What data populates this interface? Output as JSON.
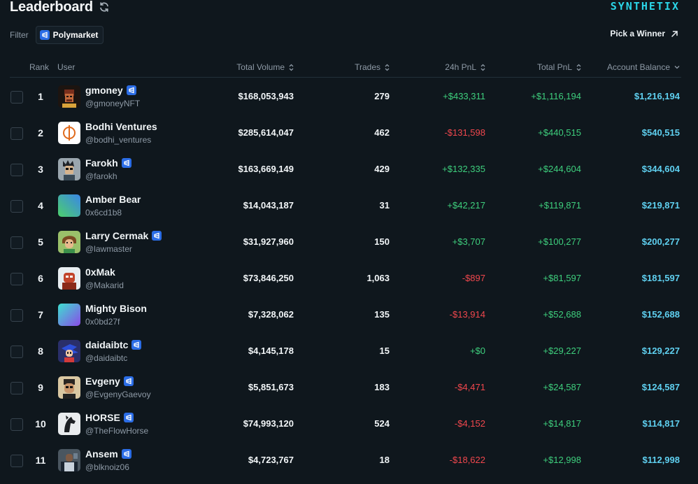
{
  "header": {
    "title": "Leaderboard",
    "brand": "SYNTHETIX"
  },
  "filter": {
    "label": "Filter",
    "chip": "Polymarket"
  },
  "pick_winner": "Pick a Winner",
  "columns": {
    "rank": "Rank",
    "user": "User",
    "total_volume": "Total Volume",
    "trades": "Trades",
    "pnl_24h": "24h PnL",
    "total_pnl": "Total PnL",
    "account_balance": "Account Balance"
  },
  "colors": {
    "positive": "#3ecf7d",
    "negative": "#f0474d",
    "balance": "#5fd0f0",
    "brand": "#2bd6e8",
    "verified": "#2b6de6"
  },
  "rows": [
    {
      "rank": "1",
      "name": "gmoney",
      "handle": "@gmoneyNFT",
      "verified": true,
      "avatar": "avatar-gmoney",
      "volume": "$168,053,943",
      "trades": "279",
      "pnl24": "+$433,311",
      "pnl24_sign": "pos",
      "pnl_total": "+$1,116,194",
      "balance": "$1,216,194"
    },
    {
      "rank": "2",
      "name": "Bodhi Ventures",
      "handle": "@bodhi_ventures",
      "verified": false,
      "avatar": "avatar-bodhi",
      "volume": "$285,614,047",
      "trades": "462",
      "pnl24": "-$131,598",
      "pnl24_sign": "neg",
      "pnl_total": "+$440,515",
      "balance": "$540,515"
    },
    {
      "rank": "3",
      "name": "Farokh",
      "handle": "@farokh",
      "verified": true,
      "avatar": "avatar-farokh",
      "volume": "$163,669,149",
      "trades": "429",
      "pnl24": "+$132,335",
      "pnl24_sign": "pos",
      "pnl_total": "+$244,604",
      "balance": "$344,604"
    },
    {
      "rank": "4",
      "name": "Amber Bear",
      "handle": "0x6cd1b8",
      "verified": false,
      "avatar": "avatar-gradient-green",
      "volume": "$14,043,187",
      "trades": "31",
      "pnl24": "+$42,217",
      "pnl24_sign": "pos",
      "pnl_total": "+$119,871",
      "balance": "$219,871"
    },
    {
      "rank": "5",
      "name": "Larry Cermak",
      "handle": "@lawmaster",
      "verified": true,
      "avatar": "avatar-larry",
      "volume": "$31,927,960",
      "trades": "150",
      "pnl24": "+$3,707",
      "pnl24_sign": "pos",
      "pnl_total": "+$100,277",
      "balance": "$200,277"
    },
    {
      "rank": "6",
      "name": "0xMak",
      "handle": "@Makarid",
      "verified": false,
      "avatar": "avatar-0xmak",
      "volume": "$73,846,250",
      "trades": "1,063",
      "pnl24": "-$897",
      "pnl24_sign": "neg",
      "pnl_total": "+$81,597",
      "balance": "$181,597"
    },
    {
      "rank": "7",
      "name": "Mighty Bison",
      "handle": "0x0bd27f",
      "verified": false,
      "avatar": "avatar-gradient-cyan",
      "volume": "$7,328,062",
      "trades": "135",
      "pnl24": "-$13,914",
      "pnl24_sign": "neg",
      "pnl_total": "+$52,688",
      "balance": "$152,688"
    },
    {
      "rank": "8",
      "name": "daidaibtc",
      "handle": "@daidaibtc",
      "verified": true,
      "avatar": "avatar-daidai",
      "volume": "$4,145,178",
      "trades": "15",
      "pnl24": "+$0",
      "pnl24_sign": "pos",
      "pnl_total": "+$29,227",
      "balance": "$129,227"
    },
    {
      "rank": "9",
      "name": "Evgeny",
      "handle": "@EvgenyGaevoy",
      "verified": true,
      "avatar": "avatar-evgeny",
      "volume": "$5,851,673",
      "trades": "183",
      "pnl24": "-$4,471",
      "pnl24_sign": "neg",
      "pnl_total": "+$24,587",
      "balance": "$124,587"
    },
    {
      "rank": "10",
      "name": "HORSE",
      "handle": "@TheFlowHorse",
      "verified": true,
      "avatar": "avatar-horse",
      "volume": "$74,993,120",
      "trades": "524",
      "pnl24": "-$4,152",
      "pnl24_sign": "neg",
      "pnl_total": "+$14,817",
      "balance": "$114,817"
    },
    {
      "rank": "11",
      "name": "Ansem",
      "handle": "@blknoiz06",
      "verified": true,
      "avatar": "avatar-ansem",
      "volume": "$4,723,767",
      "trades": "18",
      "pnl24": "-$18,622",
      "pnl24_sign": "neg",
      "pnl_total": "+$12,998",
      "balance": "$112,998"
    }
  ]
}
